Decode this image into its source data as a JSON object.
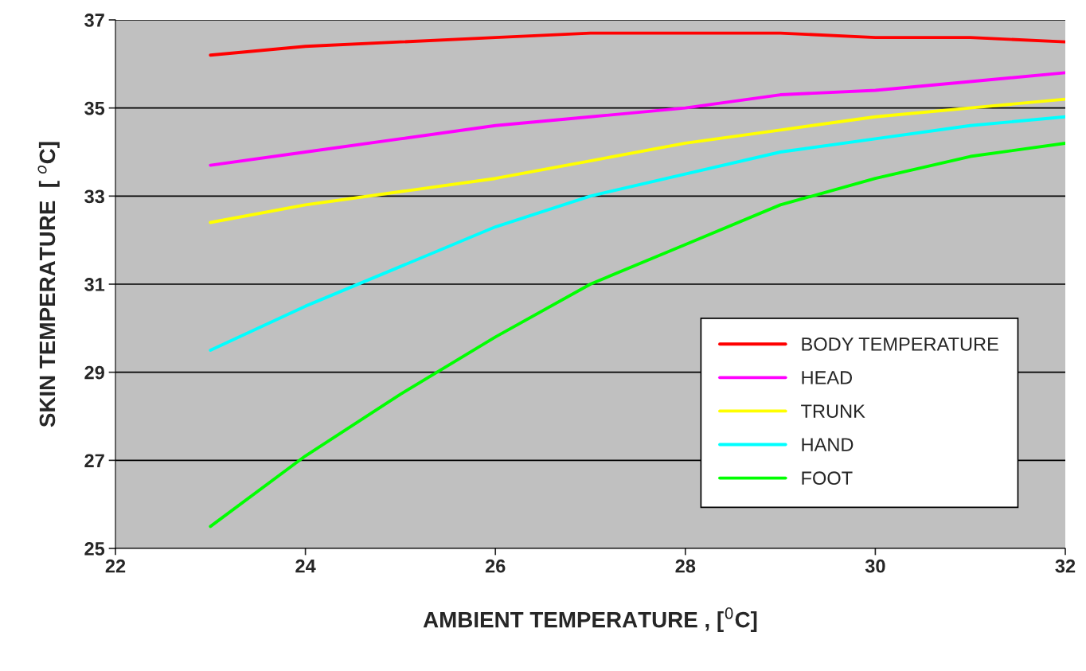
{
  "chart_data": {
    "type": "line",
    "xlabel": "AMBIENT TEMPERATURE , [$^{0}$C]",
    "ylabel": "SKIN TEMPERATURE  [ $^{o}$C]",
    "x": [
      23,
      24,
      25,
      26,
      27,
      28,
      29,
      30,
      31,
      32
    ],
    "series": [
      {
        "name": "BODY TEMPERATURE",
        "color": "#ff0000",
        "values": [
          36.2,
          36.4,
          36.5,
          36.6,
          36.7,
          36.7,
          36.7,
          36.6,
          36.6,
          36.5
        ]
      },
      {
        "name": "HEAD",
        "color": "#ff00ff",
        "values": [
          33.7,
          34.0,
          34.3,
          34.6,
          34.8,
          35.0,
          35.3,
          35.4,
          35.6,
          35.8
        ]
      },
      {
        "name": "TRUNK",
        "color": "#ffff00",
        "values": [
          32.4,
          32.8,
          33.1,
          33.4,
          33.8,
          34.2,
          34.5,
          34.8,
          35.0,
          35.2
        ]
      },
      {
        "name": "HAND",
        "color": "#00ffff",
        "values": [
          29.5,
          30.5,
          31.4,
          32.3,
          33.0,
          33.5,
          34.0,
          34.3,
          34.6,
          34.8
        ]
      },
      {
        "name": "FOOT",
        "color": "#00ff00",
        "values": [
          25.5,
          27.1,
          28.5,
          29.8,
          31.0,
          31.9,
          32.8,
          33.4,
          33.9,
          34.2
        ]
      }
    ],
    "xlim": [
      22,
      32
    ],
    "xticks": [
      22,
      24,
      26,
      28,
      30,
      32
    ],
    "ylim": [
      25,
      37
    ],
    "yticks": [
      25,
      27,
      29,
      31,
      33,
      35,
      37
    ],
    "grid": "y",
    "legend": "lower right",
    "marker": "none",
    "line_style": "solid"
  }
}
